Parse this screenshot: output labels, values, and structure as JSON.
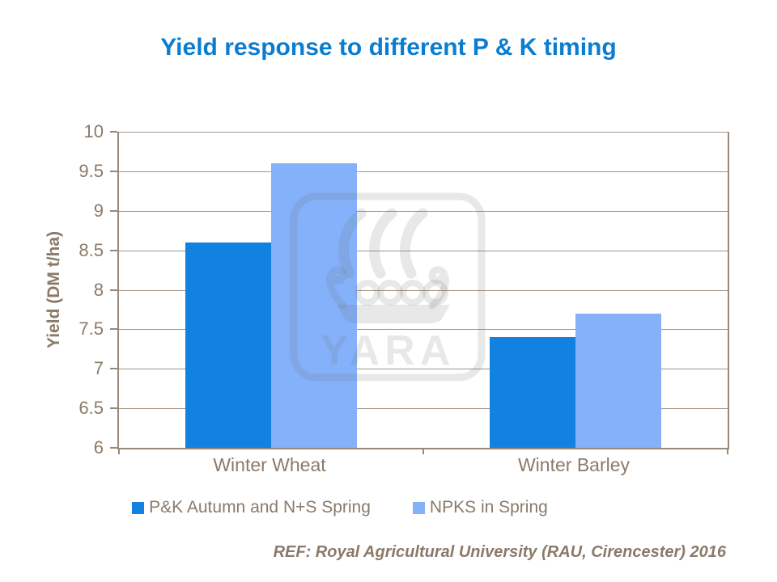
{
  "slide": {
    "reference": "REF: Royal Agricultural University (RAU, Cirencester) 2016",
    "watermark_text": "YARA"
  },
  "colors": {
    "title": "#0a7dd0",
    "series1": "#1182df",
    "series2": "#84b1f9",
    "text": "#8b7a69",
    "grid": "#a29386",
    "axis": "#97897b",
    "watermark": "rgba(110,110,110,0.16)"
  },
  "chart_data": {
    "type": "bar",
    "title": "Yield response to different P & K timing",
    "categories": [
      "Winter Wheat",
      "Winter Barley"
    ],
    "series": [
      {
        "name": "P&K Autumn and N+S Spring",
        "color": "#1182df",
        "values": [
          8.6,
          7.4
        ]
      },
      {
        "name": "NPKS in Spring",
        "color": "#84b1f9",
        "values": [
          9.6,
          7.7
        ]
      }
    ],
    "xlabel": "",
    "ylabel": "Yield (DM t/ha)",
    "ylim": [
      6,
      10
    ],
    "ytick_step": 0.5,
    "grid": true,
    "legend_position": "bottom"
  }
}
